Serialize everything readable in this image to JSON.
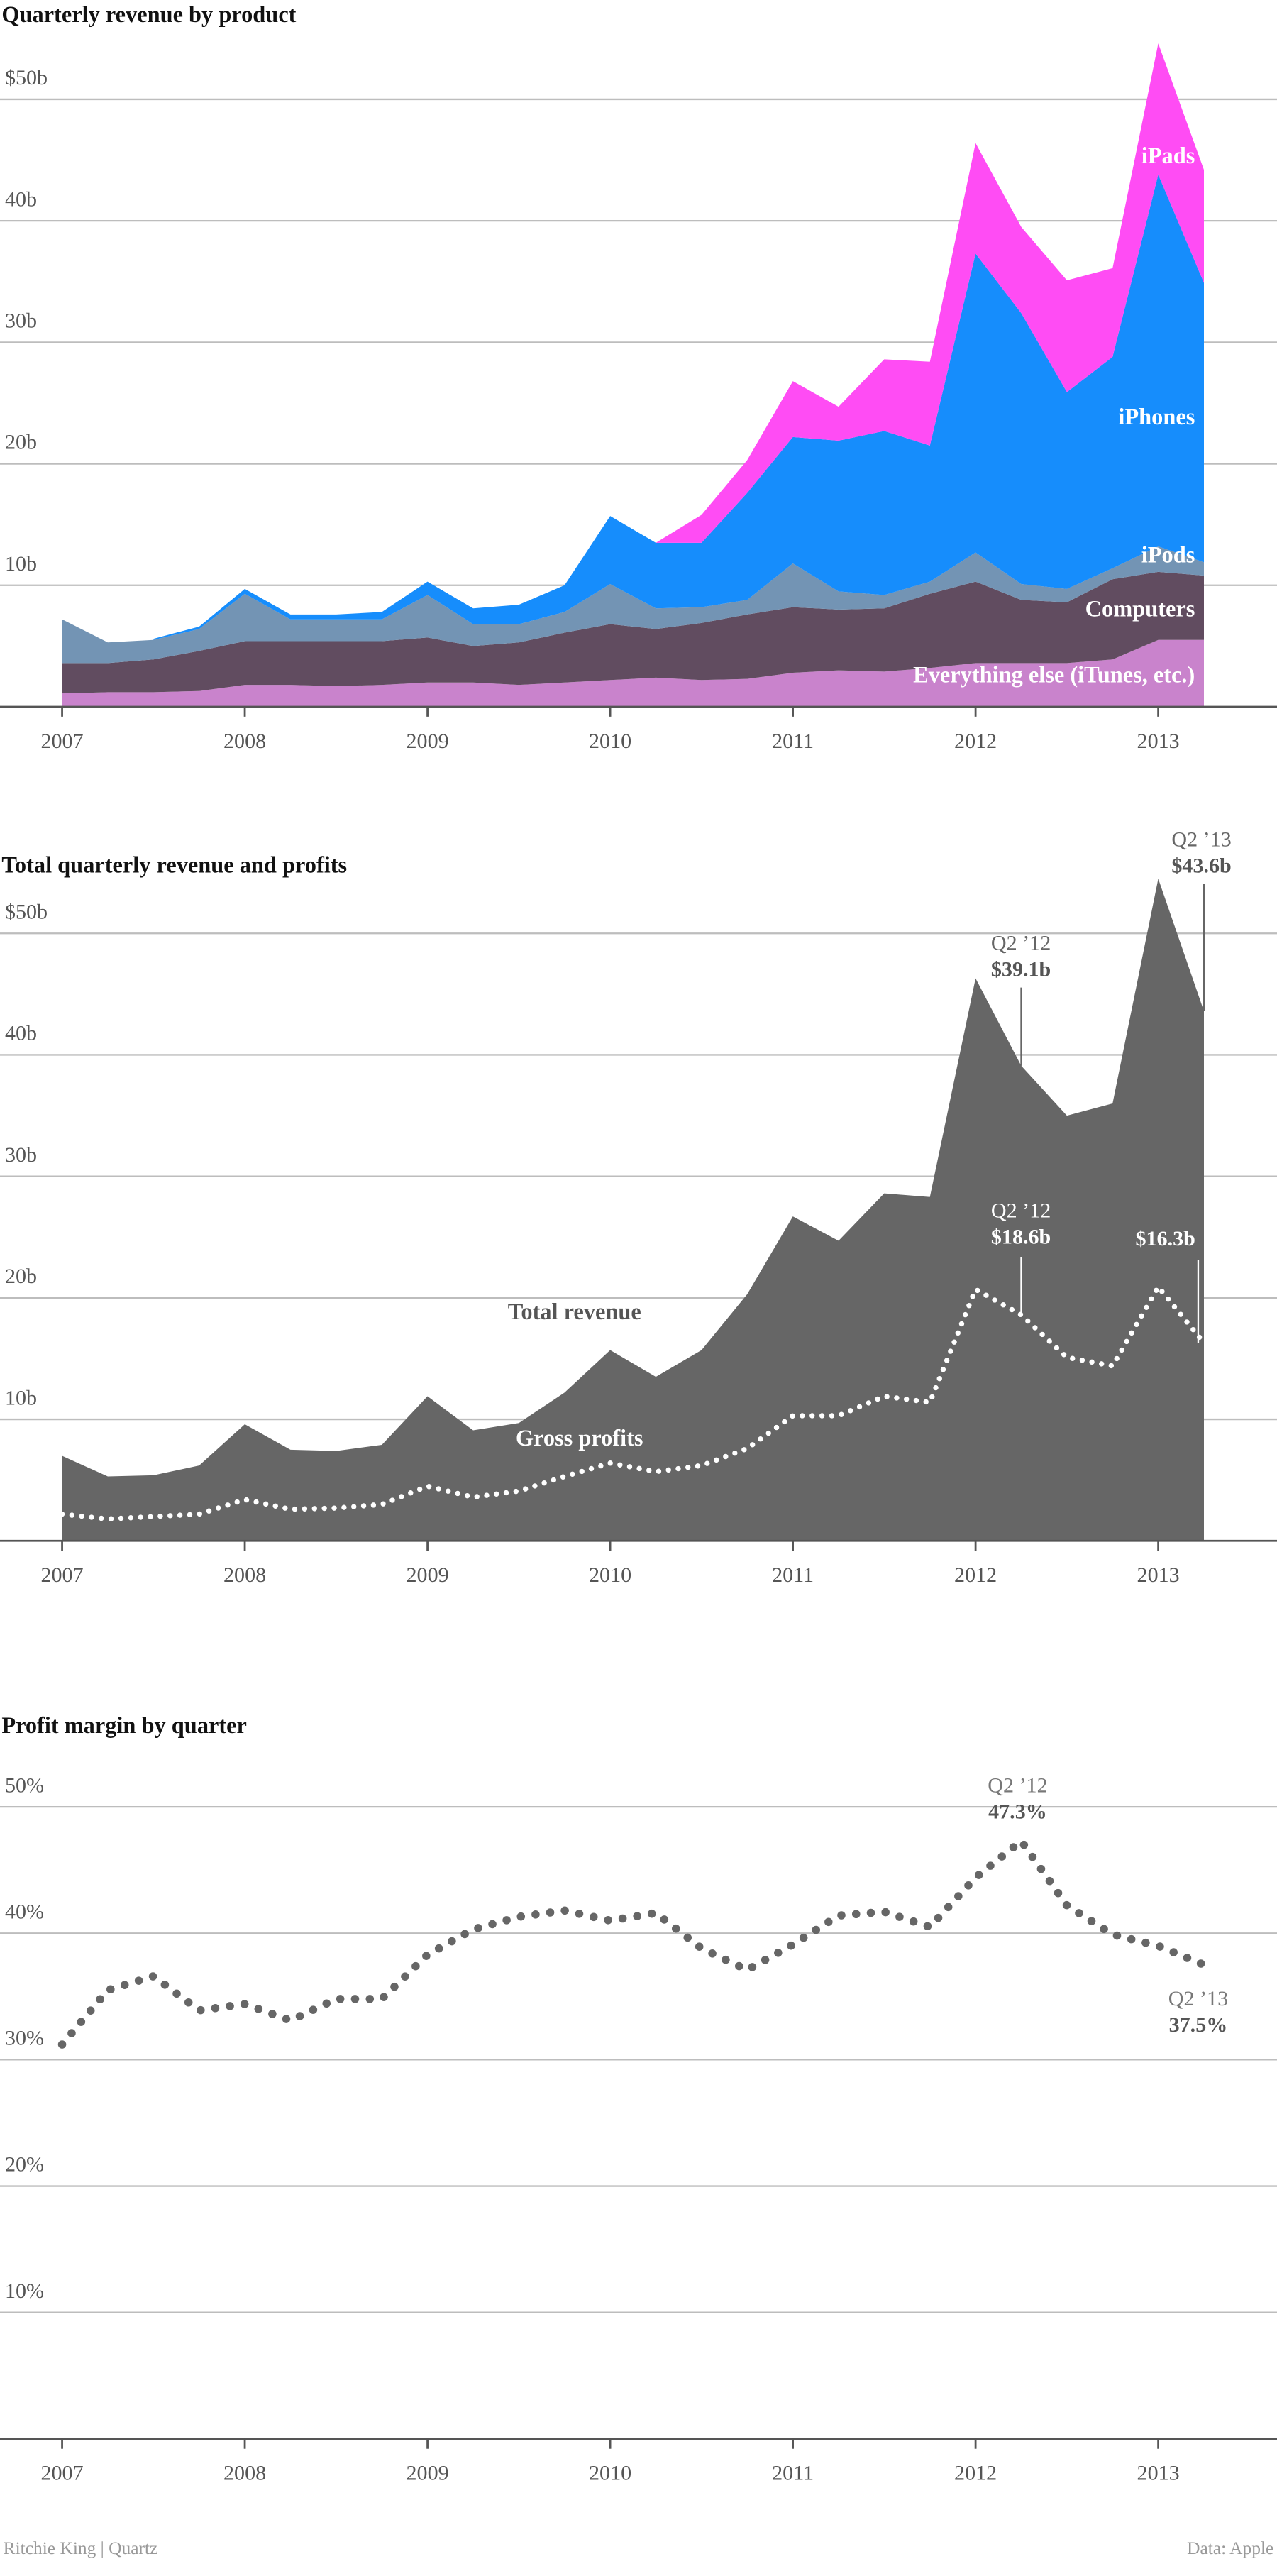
{
  "chart_data": [
    {
      "type": "stacked_area",
      "title": "Quarterly revenue by product",
      "x": [
        2007,
        2007.25,
        2007.5,
        2007.75,
        2008,
        2008.25,
        2008.5,
        2008.75,
        2009,
        2009.25,
        2009.5,
        2009.75,
        2010,
        2010.25,
        2010.5,
        2010.75,
        2011,
        2011.25,
        2011.5,
        2011.75,
        2012,
        2012.25,
        2012.5,
        2012.75,
        2013,
        2013.25
      ],
      "xlim": [
        2006.66,
        2013.65
      ],
      "xticks": [
        2007,
        2008,
        2009,
        2010,
        2011,
        2012,
        2013
      ],
      "ylim": [
        0,
        55
      ],
      "yticks": [
        {
          "value": 10,
          "label": "10b"
        },
        {
          "value": 20,
          "label": "20b"
        },
        {
          "value": 30,
          "label": "30b"
        },
        {
          "value": 40,
          "label": "40b"
        },
        {
          "value": 50,
          "label": "$50b"
        }
      ],
      "grid": true,
      "series": [
        {
          "name": "Everything else (iTunes, etc.)",
          "color": "#c983cc",
          "values": [
            1.1,
            1.2,
            1.2,
            1.3,
            1.8,
            1.8,
            1.7,
            1.8,
            2.0,
            2.0,
            1.8,
            2.0,
            2.2,
            2.4,
            2.2,
            2.3,
            2.8,
            3.0,
            2.9,
            3.2,
            3.6,
            3.6,
            3.6,
            3.9,
            5.5,
            5.5
          ]
        },
        {
          "name": "Computers",
          "color": "#614c60",
          "values": [
            2.5,
            2.4,
            2.7,
            3.3,
            3.6,
            3.6,
            3.7,
            3.6,
            3.7,
            3.0,
            3.5,
            4.1,
            4.6,
            4.0,
            4.7,
            5.3,
            5.4,
            5.0,
            5.2,
            6.1,
            6.7,
            5.2,
            5.0,
            6.6,
            5.6,
            5.3
          ]
        },
        {
          "name": "iPods",
          "color": "#7394b4",
          "values": [
            3.6,
            1.7,
            1.6,
            1.8,
            3.9,
            1.8,
            1.8,
            1.8,
            3.5,
            1.8,
            1.5,
            1.7,
            3.3,
            1.7,
            1.3,
            1.2,
            3.6,
            1.5,
            1.1,
            1.0,
            2.4,
            1.3,
            1.1,
            0.9,
            2.1,
            1.1
          ]
        },
        {
          "name": "iPhones",
          "color": "#168dfc",
          "values": [
            null,
            null,
            0.1,
            0.2,
            0.4,
            0.4,
            0.4,
            0.6,
            1.1,
            1.3,
            1.6,
            2.2,
            5.6,
            5.4,
            5.3,
            8.8,
            10.4,
            12.4,
            13.5,
            11.2,
            24.6,
            22.3,
            16.2,
            17.4,
            30.6,
            23.0
          ]
        },
        {
          "name": "iPads",
          "color": "#ff4cf4",
          "values": [
            null,
            null,
            null,
            null,
            null,
            null,
            null,
            null,
            null,
            null,
            null,
            null,
            null,
            0,
            2.3,
            2.7,
            4.6,
            2.8,
            5.9,
            6.9,
            9.1,
            7.1,
            9.2,
            7.3,
            10.8,
            9.3
          ]
        }
      ]
    },
    {
      "type": "area",
      "title": "Total quarterly revenue and profits",
      "x": [
        2007,
        2007.25,
        2007.5,
        2007.75,
        2008,
        2008.25,
        2008.5,
        2008.75,
        2009,
        2009.25,
        2009.5,
        2009.75,
        2010,
        2010.25,
        2010.5,
        2010.75,
        2011,
        2011.25,
        2011.5,
        2011.75,
        2012,
        2012.25,
        2012.5,
        2012.75,
        2013,
        2013.25
      ],
      "xlim": [
        2006.66,
        2013.65
      ],
      "xticks": [
        2007,
        2008,
        2009,
        2010,
        2011,
        2012,
        2013
      ],
      "ylim": [
        0,
        55
      ],
      "yticks": [
        {
          "value": 10,
          "label": "10b"
        },
        {
          "value": 20,
          "label": "20b"
        },
        {
          "value": 30,
          "label": "30b"
        },
        {
          "value": 40,
          "label": "40b"
        },
        {
          "value": 50,
          "label": "$50b"
        }
      ],
      "grid": true,
      "series": [
        {
          "name": "Total revenue",
          "type": "area",
          "color": "#666666",
          "values": [
            7.0,
            5.3,
            5.4,
            6.2,
            9.6,
            7.5,
            7.4,
            7.9,
            11.9,
            9.1,
            9.7,
            12.2,
            15.7,
            13.5,
            15.7,
            20.3,
            26.7,
            24.7,
            28.6,
            28.3,
            46.3,
            39.1,
            35.0,
            36.0,
            54.5,
            43.6
          ],
          "value_labels": [
            null,
            null,
            null,
            null,
            null,
            null,
            null,
            null,
            null,
            null,
            null,
            null,
            null,
            null,
            null,
            null,
            null,
            null,
            null,
            null,
            null,
            "$39.1b",
            null,
            null,
            null,
            "$43.6b"
          ],
          "notes": [
            null,
            null,
            null,
            null,
            null,
            null,
            null,
            null,
            null,
            null,
            null,
            null,
            null,
            null,
            null,
            null,
            null,
            null,
            null,
            null,
            null,
            "Q2 ’12",
            null,
            null,
            null,
            "Q2 ’13"
          ]
        },
        {
          "name": "Gross profits",
          "type": "line",
          "line_style": "dotted",
          "color": "#ffffff",
          "values": [
            2.2,
            1.8,
            2.0,
            2.2,
            3.4,
            2.6,
            2.7,
            3.0,
            4.5,
            3.6,
            4.1,
            5.3,
            6.4,
            5.7,
            6.2,
            7.6,
            10.3,
            10.3,
            11.9,
            11.4,
            20.7,
            18.6,
            15.1,
            14.4,
            20.9,
            16.3
          ],
          "value_labels": [
            null,
            null,
            null,
            null,
            null,
            null,
            null,
            null,
            null,
            null,
            null,
            null,
            null,
            null,
            null,
            null,
            null,
            null,
            null,
            null,
            null,
            "$18.6b",
            null,
            null,
            null,
            "$16.3b"
          ],
          "notes": [
            null,
            null,
            null,
            null,
            null,
            null,
            null,
            null,
            null,
            null,
            null,
            null,
            null,
            null,
            null,
            null,
            null,
            null,
            null,
            null,
            null,
            "Q2 ’12",
            null,
            null,
            null,
            null
          ]
        }
      ]
    },
    {
      "type": "line",
      "title": "Profit margin by quarter",
      "line_style": "dotted",
      "color": "#666666",
      "x": [
        2007,
        2007.25,
        2007.5,
        2007.75,
        2008,
        2008.25,
        2008.5,
        2008.75,
        2009,
        2009.25,
        2009.5,
        2009.75,
        2010,
        2010.25,
        2010.5,
        2010.75,
        2011,
        2011.25,
        2011.5,
        2011.75,
        2012,
        2012.25,
        2012.5,
        2012.75,
        2013,
        2013.25
      ],
      "xlim": [
        2006.66,
        2013.65
      ],
      "xticks": [
        2007,
        2008,
        2009,
        2010,
        2011,
        2012,
        2013
      ],
      "ylim": [
        0,
        50
      ],
      "yticks": [
        {
          "value": 10,
          "label": "10%"
        },
        {
          "value": 20,
          "label": "20%"
        },
        {
          "value": 30,
          "label": "30%"
        },
        {
          "value": 40,
          "label": "40%"
        },
        {
          "value": 50,
          "label": "50%"
        }
      ],
      "grid": true,
      "values": [
        31.2,
        35.5,
        36.6,
        33.9,
        34.4,
        33.1,
        34.8,
        34.8,
        38.3,
        40.3,
        41.3,
        41.8,
        41.0,
        41.6,
        38.8,
        37.1,
        39.1,
        41.4,
        41.7,
        40.5,
        44.4,
        47.3,
        42.2,
        39.9,
        39.0,
        37.5
      ],
      "value_labels": [
        null,
        null,
        null,
        null,
        null,
        null,
        null,
        null,
        null,
        null,
        null,
        null,
        null,
        null,
        null,
        null,
        null,
        null,
        null,
        null,
        null,
        "47.3%",
        null,
        null,
        null,
        "37.5%"
      ],
      "notes": [
        null,
        null,
        null,
        null,
        null,
        null,
        null,
        null,
        null,
        null,
        null,
        null,
        null,
        null,
        null,
        null,
        null,
        null,
        null,
        null,
        null,
        "Q2 ’12",
        null,
        null,
        null,
        "Q2 ’13"
      ]
    }
  ],
  "footer": {
    "credit": "Ritchie King | Quartz",
    "source": "Data: Apple"
  }
}
